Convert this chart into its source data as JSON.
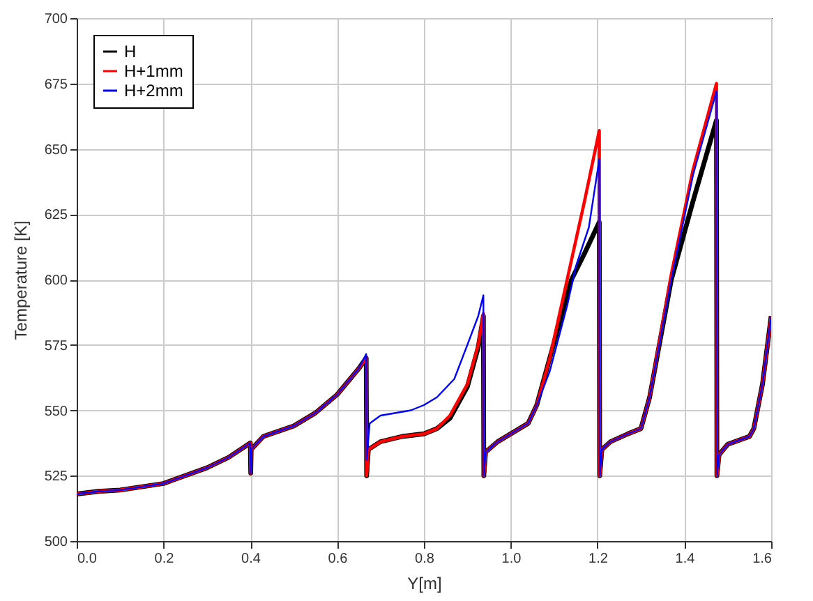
{
  "chart_data": {
    "type": "line",
    "xlabel": "Y[m]",
    "ylabel": "Temperature [K]",
    "xlim": [
      0,
      1.6
    ],
    "xticks": [
      {
        "value": 0,
        "label": "0.0"
      },
      {
        "value": 0.2,
        "label": "0.2"
      },
      {
        "value": 0.4,
        "label": "0.4"
      },
      {
        "value": 0.6,
        "label": "0.6"
      },
      {
        "value": 0.8,
        "label": "0.8"
      },
      {
        "value": 1,
        "label": "1.0"
      },
      {
        "value": 1.2,
        "label": "1.2"
      },
      {
        "value": 1.4,
        "label": "1.4"
      },
      {
        "value": 1.6,
        "label": "1.6"
      }
    ],
    "ylim": [
      500,
      700
    ],
    "yticks": [
      500,
      525,
      550,
      575,
      600,
      625,
      650,
      675,
      700
    ],
    "grid": true,
    "legend": "top left",
    "marker": "none",
    "line_style": "solid",
    "series": [
      {
        "name": "H",
        "color": "#000000",
        "x": [
          0,
          0.05,
          0.1,
          0.2,
          0.3,
          0.35,
          0.4,
          0.401,
          0.402,
          0.43,
          0.5,
          0.55,
          0.6,
          0.65,
          0.667,
          0.668,
          0.672,
          0.7,
          0.75,
          0.8,
          0.83,
          0.86,
          0.9,
          0.925,
          0.937,
          0.938,
          0.942,
          0.97,
          1,
          1.04,
          1.06,
          1.09,
          1.14,
          1.17,
          1.204,
          1.205,
          1.21,
          1.23,
          1.27,
          1.3,
          1.32,
          1.37,
          1.42,
          1.474,
          1.475,
          1.48,
          1.5,
          1.55,
          1.56,
          1.58,
          1.6
        ],
        "values": [
          518,
          519,
          519.5,
          522,
          528,
          532,
          537.5,
          526,
          535,
          540,
          544,
          549,
          556,
          566,
          570,
          525,
          535,
          538,
          540,
          541,
          543,
          547,
          559,
          574,
          586,
          525,
          534,
          538,
          541,
          545,
          552,
          570,
          600,
          610,
          622,
          525,
          535,
          538,
          541,
          543,
          555,
          600,
          630,
          661,
          525,
          533,
          537,
          540,
          543,
          560,
          586
        ]
      },
      {
        "name": "H+1mm",
        "color": "#ff0000",
        "x": [
          0,
          0.05,
          0.1,
          0.2,
          0.3,
          0.35,
          0.4,
          0.401,
          0.402,
          0.43,
          0.5,
          0.55,
          0.6,
          0.65,
          0.667,
          0.668,
          0.672,
          0.7,
          0.75,
          0.8,
          0.83,
          0.86,
          0.9,
          0.925,
          0.937,
          0.938,
          0.942,
          0.97,
          1,
          1.04,
          1.06,
          1.09,
          1.13,
          1.17,
          1.204,
          1.205,
          1.21,
          1.23,
          1.27,
          1.3,
          1.32,
          1.37,
          1.42,
          1.474,
          1.475,
          1.48,
          1.5,
          1.55,
          1.56,
          1.58,
          1.6
        ],
        "values": [
          518,
          519,
          519.5,
          522,
          528,
          532,
          537.5,
          526,
          535,
          540,
          544,
          549,
          556,
          566,
          570,
          525,
          535,
          538,
          540,
          541,
          543,
          548,
          560,
          575,
          587,
          525,
          534,
          538,
          541,
          545,
          552,
          570,
          600,
          630,
          657,
          525,
          535,
          538,
          541,
          543,
          555,
          602,
          642,
          675,
          525,
          533,
          537,
          540,
          543,
          560,
          586
        ]
      },
      {
        "name": "H+2mm",
        "color": "#0000ff",
        "x": [
          0,
          0.05,
          0.1,
          0.2,
          0.3,
          0.35,
          0.4,
          0.401,
          0.402,
          0.43,
          0.5,
          0.55,
          0.6,
          0.65,
          0.667,
          0.668,
          0.675,
          0.7,
          0.77,
          0.8,
          0.83,
          0.87,
          0.9,
          0.925,
          0.937,
          0.938,
          0.942,
          0.97,
          1,
          1.04,
          1.06,
          1.09,
          1.13,
          1.15,
          1.18,
          1.204,
          1.205,
          1.21,
          1.23,
          1.27,
          1.3,
          1.32,
          1.37,
          1.42,
          1.474,
          1.475,
          1.48,
          1.5,
          1.55,
          1.56,
          1.58,
          1.6
        ],
        "values": [
          518,
          519,
          519.5,
          522,
          528,
          532,
          537.5,
          526,
          535,
          540,
          544,
          549,
          556,
          566,
          571.5,
          531,
          545,
          548,
          550,
          552,
          555,
          562,
          575,
          586,
          594,
          525,
          534,
          538,
          541,
          545,
          552,
          565,
          590,
          605,
          620,
          646,
          525,
          535,
          538,
          541,
          543,
          555,
          600,
          640,
          672,
          525,
          533,
          537,
          540,
          543,
          560,
          586
        ]
      }
    ]
  }
}
